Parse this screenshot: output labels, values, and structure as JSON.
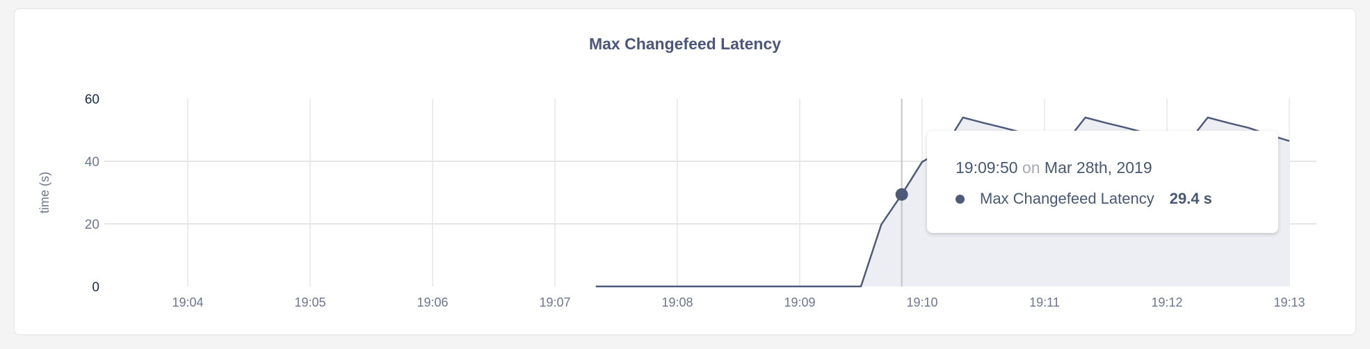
{
  "chart_data": {
    "type": "area",
    "title": "Max Changefeed Latency",
    "ylabel": "time (s)",
    "xlabel": "",
    "ylim": [
      0,
      60
    ],
    "yticks": [
      0,
      20,
      40,
      60
    ],
    "xlim": [
      "19:03:25",
      "19:13:15"
    ],
    "xticks": [
      "19:04",
      "19:05",
      "19:06",
      "19:07",
      "19:08",
      "19:09",
      "19:10",
      "19:11",
      "19:12",
      "19:13"
    ],
    "grid": true,
    "color": "#4e5a7a",
    "fill_color": "#eceef3",
    "series": [
      {
        "points": [
          [
            "19:07:20",
            0
          ],
          [
            "19:09:30",
            0
          ],
          [
            "19:09:40",
            19.8
          ],
          [
            "19:09:50",
            29.4
          ],
          [
            "19:10:00",
            39.8
          ],
          [
            "19:10:10",
            43.5
          ],
          [
            "19:10:20",
            54
          ],
          [
            "19:10:30",
            52.3
          ],
          [
            "19:10:40",
            50.7
          ],
          [
            "19:10:50",
            49
          ],
          [
            "19:11:00",
            47.3
          ],
          [
            "19:11:10",
            45.7
          ],
          [
            "19:11:20",
            54
          ],
          [
            "19:11:30",
            52.3
          ],
          [
            "19:11:40",
            50.7
          ],
          [
            "19:11:50",
            49
          ],
          [
            "19:12:00",
            47.3
          ],
          [
            "19:12:10",
            45.7
          ],
          [
            "19:12:20",
            54
          ],
          [
            "19:12:30",
            52.3
          ],
          [
            "19:12:40",
            50.7
          ],
          [
            "19:12:50",
            48.5
          ],
          [
            "19:13:00",
            46.5
          ]
        ]
      }
    ],
    "hover": {
      "time": "19:09:50",
      "on": "on",
      "date": "Mar 28th, 2019",
      "series_name": "Max Changefeed Latency",
      "value": 29.4,
      "value_label": "29.4 s"
    }
  }
}
